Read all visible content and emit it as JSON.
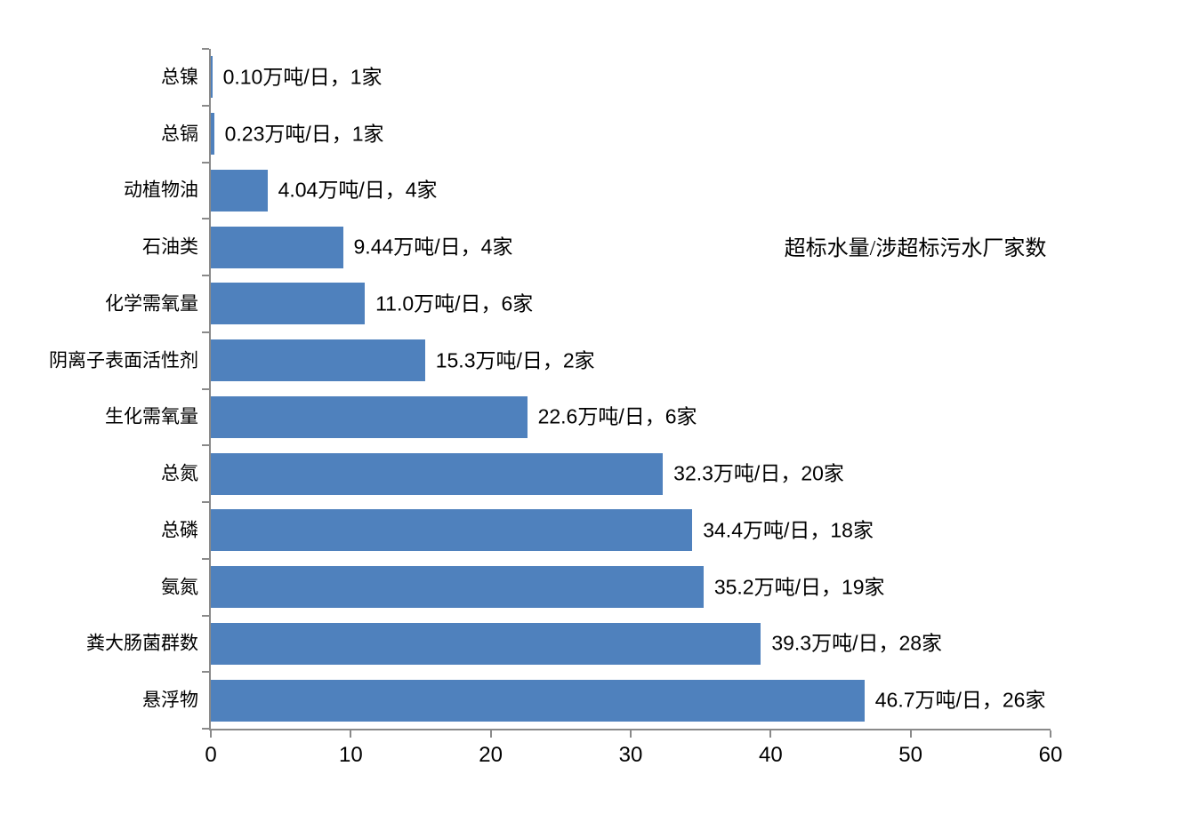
{
  "chart_data": {
    "type": "bar",
    "orientation": "horizontal",
    "title": "超标水量/涉超标污水厂家数",
    "categories": [
      "总镍",
      "总镉",
      "动植物油",
      "石油类",
      "化学需氧量",
      "阴离子表面活性剂",
      "生化需氧量",
      "总氮",
      "总磷",
      "氨氮",
      "粪大肠菌群数",
      "悬浮物"
    ],
    "values": [
      0.1,
      0.23,
      4.04,
      9.44,
      11.0,
      15.3,
      22.6,
      32.3,
      34.4,
      35.2,
      39.3,
      46.7
    ],
    "plant_counts": [
      1,
      1,
      4,
      4,
      6,
      2,
      6,
      20,
      18,
      19,
      28,
      26
    ],
    "data_labels": [
      "0.10万吨/日，1家",
      "0.23万吨/日，1家",
      "4.04万吨/日，4家",
      "9.44万吨/日，4家",
      "11.0万吨/日，6家",
      "15.3万吨/日，2家",
      "22.6万吨/日，6家",
      "32.3万吨/日，20家",
      "34.4万吨/日，18家",
      "35.2万吨/日，19家",
      "39.3万吨/日，28家",
      "46.7万吨/日，26家"
    ],
    "value_unit": "万吨/日",
    "count_unit": "家",
    "xlabel": "",
    "ylabel": "",
    "xlim": [
      0,
      60
    ],
    "x_ticks": [
      0,
      10,
      20,
      30,
      40,
      50,
      60
    ],
    "grid": false,
    "legend_position": "none",
    "bar_color": "#4F81BD",
    "axis_color": "#8A8A8A",
    "text_color": "#000000",
    "background_color": "#FFFFFF"
  }
}
